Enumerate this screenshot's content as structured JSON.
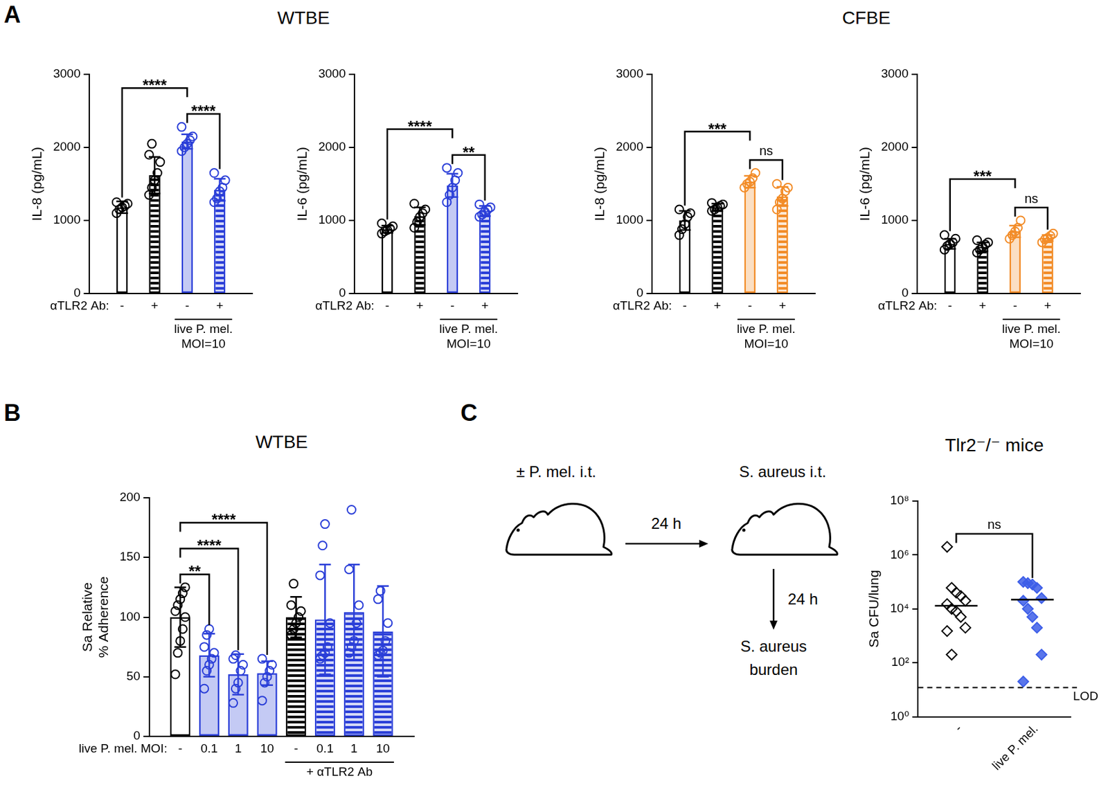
{
  "panel_letters": [
    "A",
    "B",
    "C"
  ],
  "chart_data": [
    {
      "type": "bar",
      "title": "WTBE",
      "ylabel": "IL-8 (pg/mL)",
      "ylim": [
        0,
        3000
      ],
      "yticks": [
        0,
        1000,
        2000,
        3000
      ],
      "grid": false,
      "x_row_label": "αTLR2 Ab:",
      "categories": [
        "-",
        "+",
        "-",
        "+"
      ],
      "groups": [
        {
          "label": "live P. mel. MOI=10",
          "from": 2,
          "to": 3
        }
      ],
      "values": [
        1180,
        1620,
        2080,
        1420
      ],
      "errors": [
        80,
        250,
        100,
        150
      ],
      "points": [
        [
          1100,
          1150,
          1180,
          1200,
          1230,
          1250
        ],
        [
          1350,
          1450,
          1550,
          1650,
          1800,
          1900,
          2050
        ],
        [
          1950,
          2000,
          2050,
          2100,
          2150,
          2280
        ],
        [
          1250,
          1300,
          1400,
          1450,
          1550,
          1650
        ]
      ],
      "colors": [
        "#000000",
        "#000000",
        "#2b3fd8",
        "#2b3fd8"
      ],
      "line_style": [
        "solid",
        "hatched",
        "solid",
        "hatched"
      ],
      "marker": "circle",
      "annotations": [
        {
          "from": 0,
          "to": 2,
          "text": "****"
        },
        {
          "from": 2,
          "to": 3,
          "text": "****"
        }
      ]
    },
    {
      "type": "bar",
      "ylabel": "IL-6 (pg/mL)",
      "ylim": [
        0,
        3000
      ],
      "yticks": [
        0,
        1000,
        2000,
        3000
      ],
      "grid": false,
      "x_row_label": "αTLR2 Ab:",
      "categories": [
        "-",
        "+",
        "-",
        "+"
      ],
      "groups": [
        {
          "label": "live P. mel. MOI=10",
          "from": 2,
          "to": 3
        }
      ],
      "values": [
        880,
        1060,
        1480,
        1130
      ],
      "errors": [
        50,
        120,
        160,
        70
      ],
      "points": [
        [
          820,
          850,
          870,
          890,
          920,
          960
        ],
        [
          900,
          980,
          1050,
          1100,
          1150,
          1230
        ],
        [
          1250,
          1350,
          1450,
          1550,
          1650,
          1720
        ],
        [
          1050,
          1080,
          1120,
          1150,
          1180,
          1220
        ]
      ],
      "colors": [
        "#000000",
        "#000000",
        "#2b3fd8",
        "#2b3fd8"
      ],
      "line_style": [
        "solid",
        "hatched",
        "solid",
        "hatched"
      ],
      "marker": "circle",
      "annotations": [
        {
          "from": 0,
          "to": 2,
          "text": "****"
        },
        {
          "from": 2,
          "to": 3,
          "text": "**"
        }
      ]
    },
    {
      "type": "bar",
      "title": "CFBE",
      "ylabel": "IL-8 (pg/mL)",
      "ylim": [
        0,
        3000
      ],
      "yticks": [
        0,
        1000,
        2000,
        3000
      ],
      "grid": false,
      "x_row_label": "αTLR2 Ab:",
      "categories": [
        "-",
        "+",
        "-",
        "+"
      ],
      "groups": [
        {
          "label": "live P. mel. MOI=10",
          "from": 2,
          "to": 3
        }
      ],
      "values": [
        1000,
        1180,
        1530,
        1330
      ],
      "errors": [
        130,
        50,
        80,
        130
      ],
      "points": [
        [
          800,
          880,
          950,
          1050,
          1100,
          1150
        ],
        [
          1130,
          1150,
          1180,
          1200,
          1220,
          1240
        ],
        [
          1450,
          1500,
          1530,
          1580,
          1650
        ],
        [
          1150,
          1250,
          1300,
          1400,
          1450,
          1500
        ]
      ],
      "colors": [
        "#000000",
        "#000000",
        "#f28c28",
        "#f28c28"
      ],
      "line_style": [
        "solid",
        "hatched",
        "solid",
        "hatched"
      ],
      "marker": "circle",
      "annotations": [
        {
          "from": 0,
          "to": 2,
          "text": "***"
        },
        {
          "from": 2,
          "to": 3,
          "text": "ns"
        }
      ]
    },
    {
      "type": "bar",
      "ylabel": "IL-6 (pg/mL)",
      "ylim": [
        0,
        3000
      ],
      "yticks": [
        0,
        1000,
        2000,
        3000
      ],
      "grid": false,
      "x_row_label": "αTLR2 Ab:",
      "categories": [
        "-",
        "+",
        "-",
        "+"
      ],
      "groups": [
        {
          "label": "live P. mel. MOI=10",
          "from": 2,
          "to": 3
        }
      ],
      "values": [
        680,
        640,
        850,
        760
      ],
      "errors": [
        70,
        60,
        80,
        40
      ],
      "points": [
        [
          600,
          650,
          680,
          700,
          750,
          800
        ],
        [
          560,
          600,
          640,
          670,
          700,
          730
        ],
        [
          750,
          800,
          850,
          900,
          1000
        ],
        [
          700,
          740,
          760,
          790,
          820
        ]
      ],
      "colors": [
        "#000000",
        "#000000",
        "#f28c28",
        "#f28c28"
      ],
      "line_style": [
        "solid",
        "hatched",
        "solid",
        "hatched"
      ],
      "marker": "circle",
      "annotations": [
        {
          "from": 0,
          "to": 2,
          "text": "***"
        },
        {
          "from": 2,
          "to": 3,
          "text": "ns"
        }
      ]
    },
    {
      "type": "bar",
      "title": "WTBE",
      "ylabel": "Sa Relative\n% Adherence",
      "ylim": [
        0,
        200
      ],
      "yticks": [
        0,
        50,
        100,
        150,
        200
      ],
      "grid": false,
      "x_row_label": "live P. mel. MOI:",
      "categories": [
        "-",
        "0.1",
        "1",
        "10",
        "-",
        "0.1",
        "1",
        "10"
      ],
      "groups": [
        {
          "label": "+ αTLR2 Ab",
          "from": 4,
          "to": 7
        }
      ],
      "values": [
        100,
        68,
        52,
        53,
        100,
        98,
        104,
        88
      ],
      "errors": [
        25,
        18,
        17,
        10,
        17,
        46,
        40,
        38
      ],
      "points": [
        [
          52,
          70,
          80,
          90,
          100,
          105,
          110,
          115,
          120,
          125
        ],
        [
          40,
          55,
          60,
          65,
          70,
          75,
          85,
          90
        ],
        [
          28,
          40,
          45,
          55,
          60,
          65,
          68
        ],
        [
          30,
          45,
          50,
          55,
          60,
          65
        ],
        [
          85,
          90,
          95,
          100,
          105,
          110,
          128
        ],
        [
          65,
          68,
          70,
          75,
          95,
          135,
          160,
          178
        ],
        [
          70,
          75,
          80,
          95,
          110,
          140,
          190
        ],
        [
          68,
          70,
          72,
          80,
          95,
          115,
          122
        ]
      ],
      "colors": [
        "#000000",
        "#2b3fd8",
        "#2b3fd8",
        "#2b3fd8",
        "#000000",
        "#2b3fd8",
        "#2b3fd8",
        "#2b3fd8"
      ],
      "line_style": [
        "solid",
        "solid",
        "solid",
        "solid",
        "hatched",
        "hatched",
        "hatched",
        "hatched"
      ],
      "marker": "circle",
      "annotations": [
        {
          "from": 0,
          "to": 1,
          "text": "**"
        },
        {
          "from": 0,
          "to": 2,
          "text": "****"
        },
        {
          "from": 0,
          "to": 3,
          "text": "****"
        }
      ]
    },
    {
      "type": "scatter",
      "title": "Tlr2⁻/⁻ mice",
      "ylabel": "Sa CFU/lung",
      "log": "y",
      "ylim": [
        1,
        100000000
      ],
      "yticks": [
        {
          "value": 1,
          "label": "10⁰"
        },
        {
          "value": 100,
          "label": "10²"
        },
        {
          "value": 10000,
          "label": "10⁴"
        },
        {
          "value": 1000000,
          "label": "10⁶"
        },
        {
          "value": 100000000,
          "label": "10⁸"
        }
      ],
      "grid": false,
      "categories": [
        "-",
        "live P. mel."
      ],
      "values": [
        13000,
        22000
      ],
      "points": [
        [
          2000000,
          60000,
          40000,
          30000,
          20000,
          15000,
          10000,
          8000,
          5000,
          2000,
          1500,
          200
        ],
        [
          100000,
          90000,
          80000,
          60000,
          25000,
          20000,
          10000,
          5000,
          2000,
          200,
          20
        ]
      ],
      "colors": [
        "#000000",
        "#3d5ee8"
      ],
      "marker": "diamond",
      "annotations": [
        {
          "from": 0,
          "to": 1,
          "text": "ns"
        },
        {
          "value": 12,
          "text": "LOD",
          "line_style": "dashed"
        }
      ]
    }
  ],
  "diagram": {
    "steps": [
      "± P. mel. i.t.",
      "S. aureus i.t.",
      "S. aureus burden"
    ],
    "intervals": [
      "24 h",
      "24 h"
    ]
  }
}
